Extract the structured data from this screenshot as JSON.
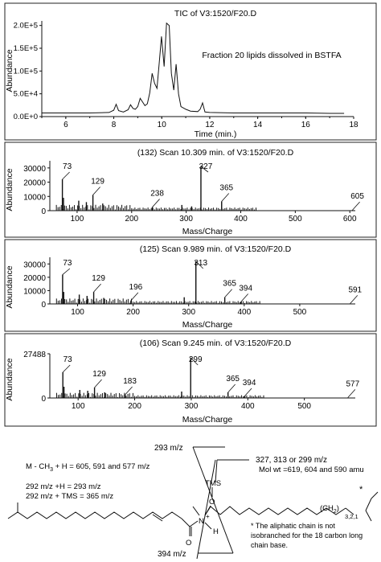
{
  "chart_data": [
    {
      "type": "line",
      "title": "TIC of V3:1520/F20.D",
      "annotation": "Fraction 20 lipids dissolved in BSTFA",
      "xlabel": "Time (min.)",
      "ylabel": "Abundance",
      "xlim": [
        5,
        18
      ],
      "ylim": [
        0,
        210000
      ],
      "xticks": [
        "6",
        "8",
        "10",
        "12",
        "14",
        "16",
        "18"
      ],
      "yticks": [
        "0.0E+0",
        "5.0E+4",
        "1.0E+5",
        "1.5E+5",
        "2.0E+5"
      ],
      "x": [
        5.0,
        6.0,
        7.0,
        7.8,
        8.0,
        8.1,
        8.2,
        8.4,
        8.6,
        8.7,
        8.8,
        8.9,
        9.0,
        9.1,
        9.2,
        9.3,
        9.4,
        9.5,
        9.6,
        9.7,
        9.8,
        9.9,
        9.99,
        10.1,
        10.2,
        10.31,
        10.4,
        10.5,
        10.6,
        10.7,
        10.8,
        11.0,
        11.2,
        11.5,
        11.6,
        11.7,
        11.8,
        12.0,
        13.0,
        14.0,
        15.0,
        16.0,
        17.0,
        17.6
      ],
      "y": [
        8000,
        8000,
        8000,
        9000,
        14000,
        27000,
        13000,
        10000,
        15000,
        26000,
        18000,
        16000,
        22000,
        40000,
        32000,
        24000,
        28000,
        52000,
        95000,
        73000,
        62000,
        120000,
        176000,
        110000,
        205000,
        200000,
        95000,
        58000,
        115000,
        50000,
        22000,
        16000,
        12000,
        11000,
        16000,
        30000,
        10000,
        9000,
        8000,
        8000,
        8000,
        8000,
        7000,
        7000
      ]
    },
    {
      "type": "bar",
      "title": "(132) Scan 10.309 min. of V3:1520/F20.D",
      "xlabel": "Mass/Charge",
      "ylabel": "Abundance",
      "xlim": [
        50,
        610
      ],
      "ylim": [
        0,
        35000
      ],
      "xticks": [
        "100",
        "200",
        "300",
        "400",
        "500",
        "600"
      ],
      "yticks": [
        "0",
        "10000",
        "20000",
        "30000"
      ],
      "peak_labels": [
        "73",
        "129",
        "238",
        "327",
        "365",
        "605"
      ],
      "peaks": [
        {
          "mz": 73,
          "value": 22000,
          "label": "73"
        },
        {
          "mz": 75,
          "value": 9000
        },
        {
          "mz": 103,
          "value": 7000
        },
        {
          "mz": 117,
          "value": 6000
        },
        {
          "mz": 129,
          "value": 11000,
          "label": "129"
        },
        {
          "mz": 147,
          "value": 5000
        },
        {
          "mz": 238,
          "value": 2500,
          "label": "238"
        },
        {
          "mz": 292,
          "value": 4000
        },
        {
          "mz": 310,
          "value": 3000
        },
        {
          "mz": 327,
          "value": 31000,
          "label": "327"
        },
        {
          "mz": 365,
          "value": 6500,
          "label": "365"
        },
        {
          "mz": 605,
          "value": 500,
          "label": "605"
        }
      ]
    },
    {
      "type": "bar",
      "title": "(125) Scan 9.989 min. of V3:1520/F20.D",
      "xlabel": "Mass/Charge",
      "ylabel": "Abundance",
      "xlim": [
        50,
        600
      ],
      "ylim": [
        0,
        35000
      ],
      "xticks": [
        "100",
        "200",
        "300",
        "400",
        "500"
      ],
      "yticks": [
        "0",
        "10000",
        "20000",
        "30000"
      ],
      "peak_labels": [
        "73",
        "129",
        "196",
        "313",
        "365",
        "394",
        "591"
      ],
      "peaks": [
        {
          "mz": 73,
          "value": 22000,
          "label": "73"
        },
        {
          "mz": 75,
          "value": 9000
        },
        {
          "mz": 103,
          "value": 7000
        },
        {
          "mz": 117,
          "value": 6000
        },
        {
          "mz": 129,
          "value": 9000,
          "label": "129"
        },
        {
          "mz": 147,
          "value": 4500
        },
        {
          "mz": 196,
          "value": 2500,
          "label": "196"
        },
        {
          "mz": 292,
          "value": 5000
        },
        {
          "mz": 313,
          "value": 32000,
          "label": "313"
        },
        {
          "mz": 365,
          "value": 5000,
          "label": "365"
        },
        {
          "mz": 394,
          "value": 1500,
          "label": "394"
        },
        {
          "mz": 591,
          "value": 400,
          "label": "591"
        }
      ]
    },
    {
      "type": "bar",
      "title": "(106) Scan 9.245 min. of V3:1520/F20.D",
      "xlabel": "Mass/Charge",
      "ylabel": "Abundance",
      "xlim": [
        50,
        590
      ],
      "ylim": [
        0,
        27488
      ],
      "xticks": [
        "100",
        "200",
        "300",
        "400",
        "500"
      ],
      "yticks": [
        "0",
        "27488"
      ],
      "peak_labels": [
        "73",
        "129",
        "183",
        "299",
        "365",
        "394",
        "577"
      ],
      "peaks": [
        {
          "mz": 73,
          "value": 16000,
          "label": "73"
        },
        {
          "mz": 75,
          "value": 7000
        },
        {
          "mz": 103,
          "value": 5000
        },
        {
          "mz": 117,
          "value": 4500
        },
        {
          "mz": 129,
          "value": 6500,
          "label": "129"
        },
        {
          "mz": 147,
          "value": 3500
        },
        {
          "mz": 183,
          "value": 2000,
          "label": "183"
        },
        {
          "mz": 283,
          "value": 4000
        },
        {
          "mz": 299,
          "value": 25000,
          "label": "299"
        },
        {
          "mz": 365,
          "value": 3500,
          "label": "365"
        },
        {
          "mz": 394,
          "value": 1000,
          "label": "394"
        },
        {
          "mz": 577,
          "value": 300,
          "label": "577"
        }
      ]
    }
  ],
  "structure": {
    "top_label": "293 m/z",
    "top_right_label": "327, 313 or 299 m/z",
    "tms_label": "TMS",
    "o_label": "O",
    "n_label": "N",
    "plus_label": "+",
    "h_label": "H",
    "o2_label": "O",
    "left_line1": "M - CH",
    "left_line1_sub": "3",
    "left_line1_rest": " + H = 605, 591 and 577 m/z",
    "left_line2": "292 m/z +H = 293 m/z",
    "left_line3": "292 m/z + TMS = 365 m/z",
    "mol_wt": "Mol wt =619, 604 and 590 amu",
    "chain_label": "(CH",
    "chain_sub": "2",
    "chain_close": ")",
    "chain_index": "3,2,1",
    "asterisk": "*",
    "note_line1": "* The aliphatic chain is not",
    "note_line2": "isobranched for the 18 carbon long",
    "note_line3": "chain base.",
    "bottom_label": "394 m/z"
  }
}
